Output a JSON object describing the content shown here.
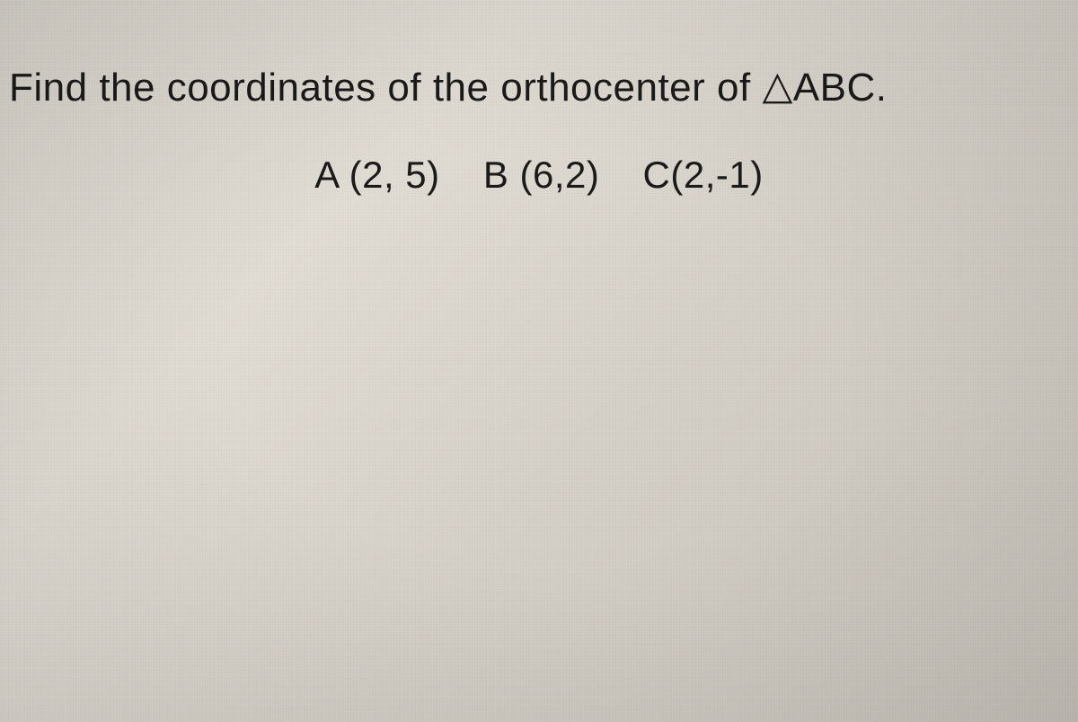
{
  "problem": {
    "question": "Find the coordinates of the orthocenter of ",
    "triangle_symbol": "△",
    "triangle_label": "ABC.",
    "point_a": "A (2, 5)",
    "point_b": "B (6,2)",
    "point_c": "C(2,-1)"
  },
  "style": {
    "background_color": "#d8d4cc",
    "text_color": "#1a1a1a",
    "question_fontsize": 44,
    "coords_fontsize": 42
  }
}
